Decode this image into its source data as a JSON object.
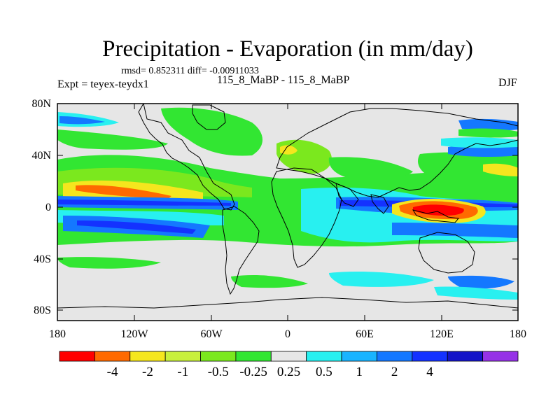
{
  "title": "Precipitation - Evaporation (in mm/day)",
  "stats_line": "rmsd= 0.852311 diff= -0.00911033",
  "experiment": "Expt = teyex-teydx1",
  "period": "115_8_MaBP - 115_8_MaBP",
  "season": "DJF",
  "axes": {
    "y_ticks": [
      "80N",
      "40N",
      "0",
      "40S",
      "80S"
    ],
    "x_ticks": [
      "180",
      "120W",
      "60W",
      "0",
      "60E",
      "120E",
      "180"
    ]
  },
  "colorbar": {
    "colors": [
      "#ff0000",
      "#ff6a00",
      "#f5e61e",
      "#c8f03c",
      "#7be81e",
      "#32e632",
      "#e6e6e6",
      "#28f0f0",
      "#19b4ff",
      "#1478ff",
      "#1432ff",
      "#1414c8",
      "#9632e6"
    ],
    "labels": [
      "-4",
      "-2",
      "-1",
      "-0.5",
      "-0.25",
      "0.25",
      "0.5",
      "1",
      "2",
      "4"
    ]
  },
  "legend_colors": {
    "background": "#e6e6e6",
    "coastline": "#000000"
  }
}
